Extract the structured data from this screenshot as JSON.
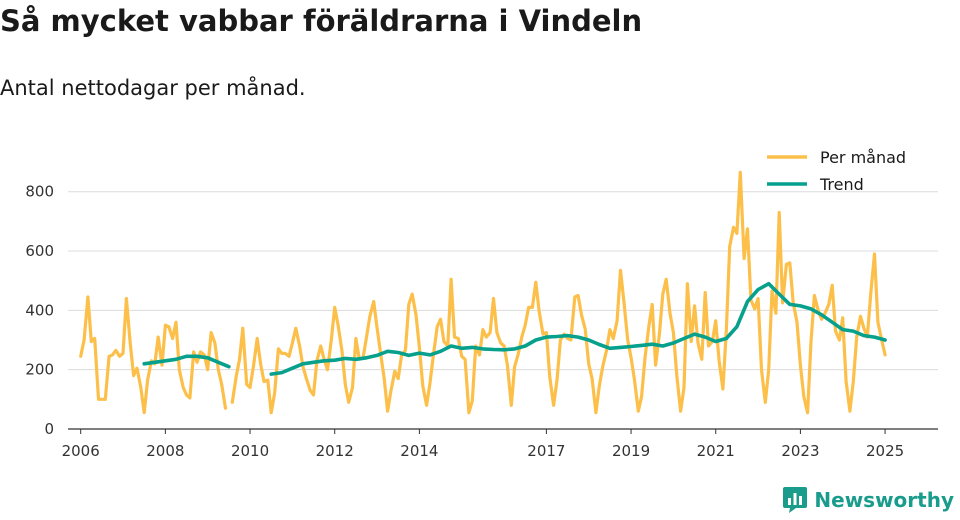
{
  "colors": {
    "monthly": "#fcc04a",
    "trend": "#06a08d",
    "grid": "#dcdcdc",
    "axis": "#333333",
    "brand": "#1a9c8c"
  },
  "brand": {
    "name": "Newsworthy",
    "icon": "bar-chart-speech-icon"
  },
  "chart_data": {
    "type": "line",
    "title": "Så mycket vabbar föräldrarna i Vindeln",
    "subtitle": "Antal nettodagar per månad.",
    "xlabel": "",
    "ylabel": "",
    "xlim": [
      2005.7,
      2026.25
    ],
    "ylim": [
      0,
      880
    ],
    "x_ticks": [
      "2006",
      "2008",
      "2010",
      "2012",
      "2014",
      "2017",
      "2019",
      "2021",
      "2023",
      "2025"
    ],
    "x_tick_values": [
      2006,
      2008,
      2010,
      2012,
      2014,
      2017,
      2019,
      2021,
      2023,
      2025
    ],
    "y_ticks": [
      "0",
      "200",
      "400",
      "600",
      "800"
    ],
    "y_tick_values": [
      0,
      200,
      400,
      600,
      800
    ],
    "legend": {
      "position": "top-right",
      "entries": [
        "Per månad",
        "Trend"
      ]
    },
    "series": [
      {
        "name": "Per månad",
        "points": [
          [
            2006.0,
            245
          ],
          [
            2006.08,
            300
          ],
          [
            2006.17,
            445
          ],
          [
            2006.25,
            295
          ],
          [
            2006.33,
            305
          ],
          [
            2006.42,
            100
          ],
          [
            2006.58,
            100
          ],
          [
            2006.67,
            245
          ],
          [
            2006.75,
            250
          ],
          [
            2006.83,
            265
          ],
          [
            2006.92,
            245
          ],
          [
            2007.0,
            255
          ],
          [
            2007.08,
            440
          ],
          [
            2007.17,
            290
          ],
          [
            2007.25,
            180
          ],
          [
            2007.33,
            205
          ],
          [
            2007.42,
            140
          ],
          [
            2007.5,
            55
          ],
          [
            2007.58,
            165
          ],
          [
            2007.67,
            230
          ],
          [
            2007.75,
            220
          ],
          [
            2007.83,
            310
          ],
          [
            2007.92,
            215
          ],
          [
            2008.0,
            350
          ],
          [
            2008.08,
            345
          ],
          [
            2008.17,
            305
          ],
          [
            2008.25,
            360
          ],
          [
            2008.33,
            200
          ],
          [
            2008.42,
            140
          ],
          [
            2008.5,
            115
          ],
          [
            2008.58,
            105
          ],
          [
            2008.67,
            260
          ],
          [
            2008.75,
            225
          ],
          [
            2008.83,
            260
          ],
          [
            2008.92,
            250
          ],
          [
            2009.0,
            200
          ],
          [
            2009.08,
            325
          ],
          [
            2009.17,
            290
          ],
          [
            2009.25,
            200
          ],
          [
            2009.33,
            150
          ],
          [
            2009.42,
            70
          ],
          null,
          [
            2009.58,
            90
          ],
          [
            2009.67,
            175
          ],
          [
            2009.75,
            235
          ],
          [
            2009.83,
            340
          ],
          [
            2009.92,
            150
          ],
          [
            2010.0,
            140
          ],
          [
            2010.08,
            210
          ],
          [
            2010.17,
            305
          ],
          [
            2010.25,
            220
          ],
          [
            2010.33,
            160
          ],
          [
            2010.42,
            165
          ],
          [
            2010.5,
            55
          ],
          [
            2010.58,
            120
          ],
          [
            2010.67,
            270
          ],
          [
            2010.75,
            255
          ],
          [
            2010.83,
            255
          ],
          [
            2010.92,
            245
          ],
          [
            2011.0,
            290
          ],
          [
            2011.08,
            340
          ],
          [
            2011.17,
            280
          ],
          [
            2011.25,
            210
          ],
          [
            2011.33,
            170
          ],
          [
            2011.42,
            130
          ],
          [
            2011.5,
            115
          ],
          [
            2011.58,
            230
          ],
          [
            2011.67,
            280
          ],
          [
            2011.75,
            235
          ],
          [
            2011.83,
            200
          ],
          [
            2011.92,
            300
          ],
          [
            2012.0,
            410
          ],
          [
            2012.08,
            350
          ],
          [
            2012.17,
            265
          ],
          [
            2012.25,
            150
          ],
          [
            2012.33,
            90
          ],
          [
            2012.42,
            140
          ],
          [
            2012.5,
            305
          ],
          [
            2012.58,
            235
          ],
          [
            2012.67,
            240
          ],
          [
            2012.75,
            310
          ],
          [
            2012.83,
            380
          ],
          [
            2012.92,
            430
          ],
          [
            2013.0,
            340
          ],
          [
            2013.08,
            260
          ],
          [
            2013.17,
            170
          ],
          [
            2013.25,
            60
          ],
          [
            2013.33,
            130
          ],
          [
            2013.42,
            195
          ],
          [
            2013.5,
            170
          ],
          [
            2013.58,
            250
          ],
          [
            2013.67,
            265
          ],
          [
            2013.75,
            420
          ],
          [
            2013.83,
            455
          ],
          [
            2013.92,
            385
          ],
          [
            2014.0,
            275
          ],
          [
            2014.08,
            145
          ],
          [
            2014.17,
            80
          ],
          [
            2014.25,
            155
          ],
          [
            2014.33,
            250
          ],
          [
            2014.42,
            345
          ],
          [
            2014.5,
            370
          ],
          [
            2014.58,
            295
          ],
          [
            2014.67,
            280
          ],
          [
            2014.75,
            505
          ],
          [
            2014.83,
            310
          ],
          [
            2014.92,
            305
          ],
          [
            2015.0,
            245
          ],
          [
            2015.08,
            235
          ],
          [
            2015.17,
            55
          ],
          [
            2015.25,
            95
          ],
          [
            2015.33,
            280
          ],
          [
            2015.42,
            250
          ],
          [
            2015.5,
            335
          ],
          [
            2015.58,
            310
          ],
          [
            2015.67,
            325
          ],
          [
            2015.75,
            440
          ],
          [
            2015.83,
            325
          ],
          [
            2015.92,
            290
          ],
          [
            2016.0,
            280
          ],
          [
            2016.08,
            215
          ],
          [
            2016.17,
            80
          ],
          [
            2016.25,
            210
          ],
          [
            2016.33,
            250
          ],
          [
            2016.42,
            310
          ],
          [
            2016.5,
            350
          ],
          [
            2016.58,
            410
          ],
          [
            2016.67,
            410
          ],
          [
            2016.75,
            495
          ],
          [
            2016.83,
            395
          ],
          [
            2016.92,
            320
          ],
          [
            2017.0,
            325
          ],
          [
            2017.08,
            175
          ],
          [
            2017.17,
            80
          ],
          [
            2017.25,
            165
          ],
          [
            2017.33,
            300
          ],
          [
            2017.42,
            320
          ],
          [
            2017.5,
            305
          ],
          [
            2017.58,
            300
          ],
          [
            2017.67,
            445
          ],
          [
            2017.75,
            450
          ],
          [
            2017.83,
            385
          ],
          [
            2017.92,
            335
          ],
          [
            2018.0,
            220
          ],
          [
            2018.08,
            170
          ],
          [
            2018.17,
            55
          ],
          [
            2018.25,
            145
          ],
          [
            2018.33,
            210
          ],
          [
            2018.42,
            265
          ],
          [
            2018.5,
            335
          ],
          [
            2018.58,
            305
          ],
          [
            2018.67,
            365
          ],
          [
            2018.75,
            535
          ],
          [
            2018.83,
            430
          ],
          [
            2018.92,
            300
          ],
          [
            2019.0,
            240
          ],
          [
            2019.08,
            165
          ],
          [
            2019.17,
            60
          ],
          [
            2019.25,
            110
          ],
          [
            2019.33,
            240
          ],
          [
            2019.42,
            345
          ],
          [
            2019.5,
            420
          ],
          [
            2019.58,
            215
          ],
          [
            2019.67,
            320
          ],
          [
            2019.75,
            455
          ],
          [
            2019.83,
            505
          ],
          [
            2019.92,
            390
          ],
          [
            2020.0,
            325
          ],
          [
            2020.08,
            180
          ],
          [
            2020.17,
            60
          ],
          [
            2020.25,
            140
          ],
          [
            2020.33,
            490
          ],
          [
            2020.42,
            295
          ],
          [
            2020.5,
            415
          ],
          [
            2020.58,
            290
          ],
          [
            2020.67,
            235
          ],
          [
            2020.75,
            460
          ],
          [
            2020.83,
            280
          ],
          [
            2020.92,
            295
          ],
          [
            2021.0,
            365
          ],
          [
            2021.08,
            230
          ],
          [
            2021.17,
            135
          ],
          [
            2021.25,
            330
          ],
          [
            2021.33,
            615
          ],
          [
            2021.42,
            680
          ],
          [
            2021.5,
            660
          ],
          [
            2021.58,
            865
          ],
          [
            2021.67,
            575
          ],
          [
            2021.75,
            675
          ],
          [
            2021.83,
            435
          ],
          [
            2021.92,
            405
          ],
          [
            2022.0,
            440
          ],
          [
            2022.08,
            200
          ],
          [
            2022.17,
            90
          ],
          [
            2022.25,
            200
          ],
          [
            2022.33,
            465
          ],
          [
            2022.42,
            390
          ],
          [
            2022.5,
            730
          ],
          [
            2022.58,
            425
          ],
          [
            2022.67,
            555
          ],
          [
            2022.75,
            560
          ],
          [
            2022.83,
            425
          ],
          [
            2022.92,
            360
          ],
          [
            2023.0,
            215
          ],
          [
            2023.08,
            110
          ],
          [
            2023.17,
            55
          ],
          [
            2023.25,
            295
          ],
          [
            2023.33,
            450
          ],
          [
            2023.42,
            400
          ],
          [
            2023.5,
            370
          ],
          [
            2023.58,
            390
          ],
          [
            2023.67,
            420
          ],
          [
            2023.75,
            485
          ],
          [
            2023.83,
            330
          ],
          [
            2023.92,
            300
          ],
          [
            2024.0,
            375
          ],
          [
            2024.08,
            160
          ],
          [
            2024.17,
            60
          ],
          [
            2024.25,
            160
          ],
          [
            2024.33,
            310
          ],
          [
            2024.42,
            380
          ],
          [
            2024.5,
            340
          ],
          [
            2024.58,
            310
          ],
          [
            2024.67,
            470
          ],
          [
            2024.75,
            590
          ],
          [
            2024.83,
            360
          ],
          [
            2024.92,
            300
          ],
          [
            2025.0,
            250
          ]
        ]
      },
      {
        "name": "Trend",
        "points": [
          [
            2007.5,
            220
          ],
          [
            2007.75,
            225
          ],
          [
            2008.0,
            230
          ],
          [
            2008.25,
            235
          ],
          [
            2008.5,
            245
          ],
          [
            2008.75,
            245
          ],
          [
            2009.0,
            240
          ],
          [
            2009.25,
            225
          ],
          [
            2009.5,
            210
          ],
          null,
          [
            2010.5,
            185
          ],
          [
            2010.75,
            190
          ],
          [
            2011.0,
            205
          ],
          [
            2011.25,
            220
          ],
          [
            2011.5,
            225
          ],
          [
            2011.75,
            230
          ],
          [
            2012.0,
            232
          ],
          [
            2012.25,
            238
          ],
          [
            2012.5,
            235
          ],
          [
            2012.75,
            240
          ],
          [
            2013.0,
            248
          ],
          [
            2013.25,
            262
          ],
          [
            2013.5,
            258
          ],
          [
            2013.75,
            248
          ],
          [
            2014.0,
            256
          ],
          [
            2014.25,
            250
          ],
          [
            2014.5,
            262
          ],
          [
            2014.75,
            280
          ],
          [
            2015.0,
            272
          ],
          [
            2015.25,
            275
          ],
          [
            2015.5,
            270
          ],
          [
            2015.75,
            268
          ],
          [
            2016.0,
            267
          ],
          [
            2016.25,
            270
          ],
          [
            2016.5,
            280
          ],
          [
            2016.75,
            300
          ],
          [
            2017.0,
            310
          ],
          [
            2017.25,
            312
          ],
          [
            2017.5,
            315
          ],
          [
            2017.75,
            310
          ],
          [
            2018.0,
            300
          ],
          [
            2018.25,
            285
          ],
          [
            2018.5,
            272
          ],
          [
            2018.75,
            275
          ],
          [
            2019.0,
            278
          ],
          [
            2019.25,
            282
          ],
          [
            2019.5,
            286
          ],
          [
            2019.75,
            280
          ],
          [
            2020.0,
            290
          ],
          [
            2020.25,
            305
          ],
          [
            2020.5,
            320
          ],
          [
            2020.75,
            310
          ],
          [
            2021.0,
            295
          ],
          [
            2021.25,
            305
          ],
          [
            2021.5,
            345
          ],
          [
            2021.75,
            430
          ],
          [
            2022.0,
            470
          ],
          [
            2022.25,
            490
          ],
          [
            2022.5,
            455
          ],
          [
            2022.75,
            420
          ],
          [
            2023.0,
            415
          ],
          [
            2023.25,
            405
          ],
          [
            2023.5,
            385
          ],
          [
            2023.75,
            360
          ],
          [
            2024.0,
            335
          ],
          [
            2024.25,
            330
          ],
          [
            2024.5,
            315
          ],
          [
            2024.75,
            310
          ],
          [
            2025.0,
            300
          ]
        ]
      }
    ]
  }
}
